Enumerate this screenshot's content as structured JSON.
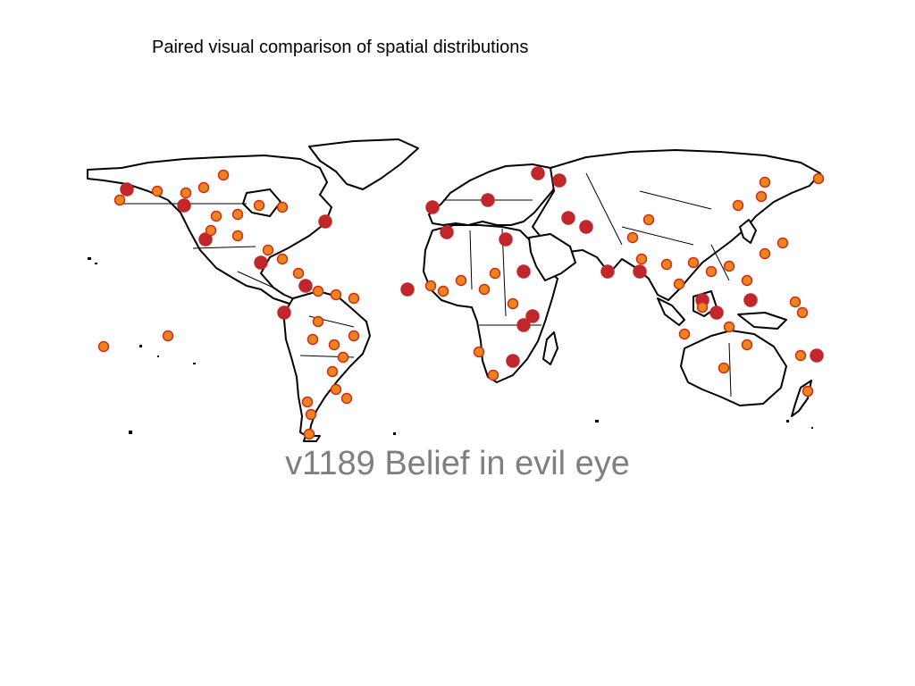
{
  "header": {
    "title": "Paired visual comparison of spatial distributions"
  },
  "slide": {
    "title": "v1189 Belief in evil eye"
  },
  "map": {
    "colors": {
      "land_fill": "#ffffff",
      "border": "#000000",
      "point_present_fill": "#e8861e",
      "point_present_stroke": "#d42a18",
      "point_absent_fill": "#c0262a"
    },
    "legend": "none"
  }
}
